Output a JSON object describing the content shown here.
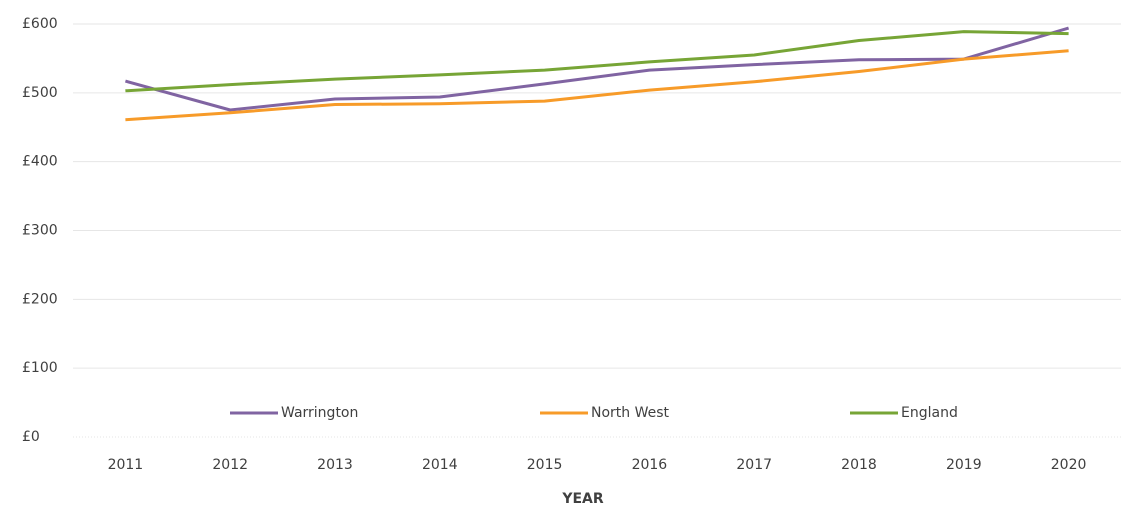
{
  "chart_data": {
    "type": "line",
    "x_label": "YEAR",
    "categories": [
      "2011",
      "2012",
      "2013",
      "2014",
      "2015",
      "2016",
      "2017",
      "2018",
      "2019",
      "2020"
    ],
    "series": [
      {
        "name": "Warrington",
        "color": "#8064a2",
        "values": [
          517,
          475,
          491,
          494,
          513,
          533,
          541,
          548,
          549,
          594
        ]
      },
      {
        "name": "North West",
        "color": "#f79b29",
        "values": [
          461,
          471,
          483,
          484,
          488,
          504,
          516,
          531,
          549,
          561
        ]
      },
      {
        "name": "England",
        "color": "#77a536",
        "values": [
          503,
          512,
          520,
          526,
          533,
          545,
          555,
          576,
          589,
          586
        ]
      }
    ],
    "ylim": [
      0,
      600
    ],
    "yticks": [
      {
        "value": 0,
        "label": "£0"
      },
      {
        "value": 100,
        "label": "£100"
      },
      {
        "value": 200,
        "label": "£200"
      },
      {
        "value": 300,
        "label": "£300"
      },
      {
        "value": 400,
        "label": "£400"
      },
      {
        "value": 500,
        "label": "£500"
      },
      {
        "value": 600,
        "label": "£600"
      }
    ],
    "grid": true,
    "legend": "bottom"
  }
}
